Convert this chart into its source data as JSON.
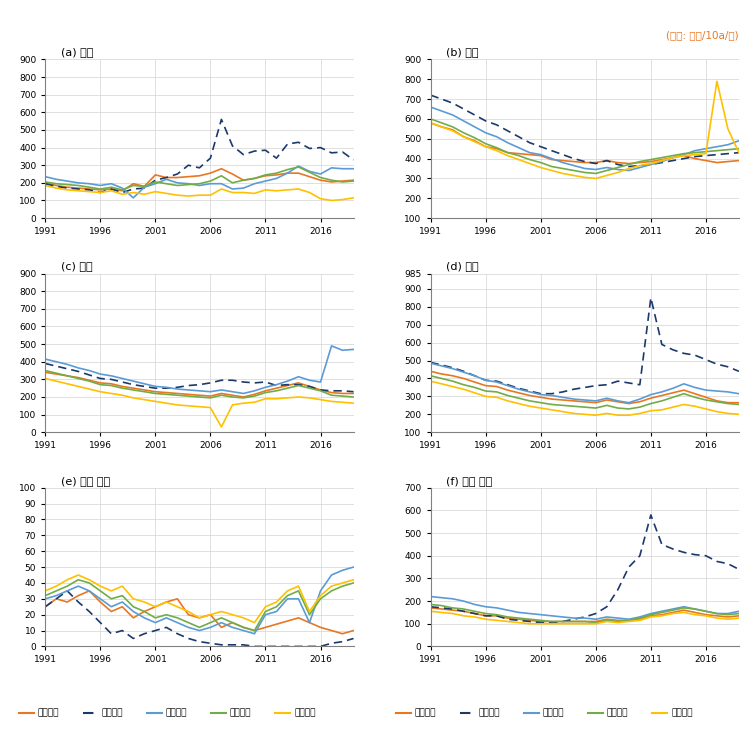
{
  "title_unit": "(단위: 시간/10a/연)",
  "years": [
    1991,
    1992,
    1993,
    1994,
    1995,
    1996,
    1997,
    1998,
    1999,
    2000,
    2001,
    2002,
    2003,
    2004,
    2005,
    2006,
    2007,
    2008,
    2009,
    2010,
    2011,
    2012,
    2013,
    2014,
    2015,
    2016,
    2017,
    2018,
    2019
  ],
  "subplot_titles": [
    "(a) 고용",
    "(b) 자가",
    "(c) 남자",
    "(d) 여자",
    "(e) 남자 고용",
    "(f) 여자 고용"
  ],
  "legend_left": [
    "경상남도",
    "경상북도",
    "전라남도",
    "전라북도",
    "충청남도"
  ],
  "legend_right": [
    "경상남도",
    "경상북도",
    "전라남도",
    "전라북도",
    "충청남도"
  ],
  "colors": [
    "#E87722",
    "#1B3A6B",
    "#5B9BD5",
    "#70AD47",
    "#FFC000"
  ],
  "dashed_index": 1,
  "panels": {
    "a": {
      "ylim": [
        0,
        900
      ],
      "yticks": [
        0,
        100,
        200,
        300,
        400,
        500,
        600,
        700,
        800,
        900
      ],
      "series": [
        [
          200,
          185,
          175,
          170,
          165,
          160,
          165,
          155,
          195,
          180,
          245,
          230,
          230,
          235,
          240,
          255,
          280,
          250,
          215,
          225,
          240,
          245,
          255,
          255,
          235,
          215,
          205,
          210,
          215
        ],
        [
          195,
          180,
          170,
          165,
          160,
          145,
          165,
          145,
          165,
          170,
          215,
          230,
          250,
          300,
          285,
          340,
          560,
          410,
          360,
          380,
          385,
          340,
          420,
          430,
          395,
          400,
          370,
          375,
          330
        ],
        [
          235,
          220,
          210,
          200,
          195,
          185,
          195,
          170,
          115,
          175,
          195,
          220,
          200,
          195,
          185,
          195,
          195,
          165,
          170,
          195,
          210,
          225,
          255,
          295,
          265,
          250,
          285,
          280,
          280
        ],
        [
          205,
          195,
          190,
          185,
          175,
          165,
          175,
          160,
          185,
          180,
          205,
          195,
          185,
          190,
          195,
          210,
          240,
          200,
          215,
          225,
          245,
          255,
          275,
          290,
          260,
          230,
          215,
          205,
          210
        ],
        [
          185,
          170,
          160,
          155,
          150,
          145,
          155,
          135,
          145,
          135,
          150,
          140,
          130,
          125,
          130,
          130,
          165,
          145,
          145,
          140,
          160,
          155,
          160,
          165,
          145,
          110,
          100,
          105,
          115
        ]
      ]
    },
    "b": {
      "ylim": [
        100,
        900
      ],
      "yticks": [
        100,
        200,
        300,
        400,
        500,
        600,
        700,
        800,
        900
      ],
      "series": [
        [
          580,
          560,
          545,
          510,
          490,
          460,
          450,
          430,
          425,
          420,
          415,
          395,
          390,
          385,
          380,
          380,
          390,
          380,
          375,
          380,
          385,
          395,
          405,
          415,
          400,
          390,
          380,
          385,
          390
        ],
        [
          720,
          700,
          680,
          650,
          620,
          590,
          570,
          540,
          510,
          480,
          460,
          440,
          420,
          400,
          385,
          375,
          390,
          370,
          360,
          365,
          370,
          380,
          390,
          400,
          410,
          415,
          420,
          425,
          430
        ],
        [
          660,
          640,
          620,
          590,
          560,
          530,
          510,
          480,
          455,
          430,
          420,
          400,
          380,
          365,
          350,
          345,
          355,
          345,
          340,
          355,
          370,
          385,
          405,
          420,
          440,
          450,
          460,
          470,
          490
        ],
        [
          600,
          580,
          560,
          530,
          505,
          475,
          455,
          430,
          415,
          395,
          380,
          360,
          350,
          340,
          330,
          325,
          340,
          355,
          370,
          385,
          395,
          405,
          415,
          425,
          430,
          435,
          440,
          445,
          450
        ],
        [
          580,
          560,
          540,
          510,
          485,
          460,
          440,
          415,
          395,
          375,
          355,
          340,
          325,
          315,
          305,
          300,
          315,
          330,
          350,
          365,
          375,
          390,
          405,
          415,
          420,
          425,
          790,
          550,
          430
        ]
      ]
    },
    "c": {
      "ylim": [
        0,
        900
      ],
      "yticks": [
        0,
        100,
        200,
        300,
        400,
        500,
        600,
        700,
        800,
        900
      ],
      "series": [
        [
          340,
          330,
          320,
          310,
          295,
          280,
          275,
          260,
          250,
          240,
          230,
          225,
          220,
          215,
          210,
          205,
          220,
          210,
          200,
          215,
          235,
          250,
          265,
          280,
          260,
          240,
          225,
          220,
          220
        ],
        [
          390,
          375,
          360,
          345,
          325,
          305,
          300,
          285,
          270,
          260,
          250,
          250,
          255,
          265,
          270,
          280,
          295,
          295,
          285,
          280,
          285,
          265,
          270,
          270,
          260,
          240,
          235,
          235,
          230
        ],
        [
          415,
          400,
          385,
          365,
          350,
          330,
          320,
          305,
          290,
          275,
          260,
          255,
          245,
          240,
          235,
          230,
          240,
          230,
          220,
          235,
          255,
          270,
          290,
          315,
          295,
          285,
          490,
          465,
          470
        ],
        [
          350,
          335,
          320,
          305,
          290,
          270,
          265,
          250,
          240,
          230,
          220,
          215,
          210,
          205,
          200,
          195,
          210,
          200,
          195,
          205,
          225,
          235,
          250,
          265,
          250,
          235,
          210,
          205,
          200
        ],
        [
          305,
          290,
          275,
          260,
          245,
          230,
          220,
          210,
          195,
          185,
          175,
          165,
          155,
          150,
          145,
          140,
          30,
          155,
          165,
          170,
          190,
          190,
          195,
          200,
          195,
          185,
          175,
          170,
          165
        ]
      ]
    },
    "d": {
      "ylim": [
        100,
        985
      ],
      "yticks": [
        100,
        200,
        300,
        400,
        500,
        600,
        700,
        800,
        900,
        985
      ],
      "series": [
        [
          440,
          425,
          415,
          400,
          380,
          360,
          355,
          335,
          320,
          305,
          295,
          285,
          280,
          275,
          270,
          265,
          280,
          270,
          260,
          270,
          290,
          305,
          320,
          335,
          315,
          295,
          275,
          265,
          265
        ],
        [
          490,
          475,
          460,
          440,
          415,
          390,
          385,
          365,
          345,
          330,
          315,
          315,
          325,
          340,
          350,
          360,
          365,
          385,
          375,
          365,
          850,
          590,
          560,
          540,
          530,
          505,
          480,
          465,
          440
        ],
        [
          485,
          470,
          455,
          435,
          415,
          390,
          380,
          360,
          340,
          325,
          310,
          305,
          295,
          285,
          280,
          275,
          290,
          275,
          265,
          285,
          310,
          325,
          345,
          370,
          350,
          335,
          330,
          325,
          315
        ],
        [
          415,
          400,
          385,
          365,
          350,
          330,
          325,
          305,
          290,
          275,
          265,
          255,
          250,
          245,
          240,
          235,
          250,
          235,
          230,
          240,
          260,
          275,
          295,
          315,
          295,
          280,
          270,
          260,
          255
        ],
        [
          385,
          370,
          355,
          340,
          320,
          300,
          295,
          275,
          260,
          245,
          235,
          225,
          215,
          205,
          200,
          195,
          205,
          195,
          195,
          205,
          220,
          225,
          240,
          255,
          245,
          230,
          215,
          205,
          200
        ]
      ]
    },
    "e": {
      "ylim": [
        0,
        100
      ],
      "yticks": [
        0,
        10,
        20,
        30,
        40,
        50,
        60,
        70,
        80,
        90,
        100
      ],
      "series": [
        [
          25,
          30,
          28,
          32,
          35,
          28,
          22,
          25,
          18,
          22,
          25,
          28,
          30,
          20,
          18,
          20,
          12,
          15,
          12,
          10,
          12,
          14,
          16,
          18,
          15,
          12,
          10,
          8,
          10
        ],
        [
          25,
          30,
          35,
          28,
          22,
          15,
          8,
          10,
          5,
          8,
          10,
          12,
          8,
          5,
          3,
          2,
          1,
          1,
          1,
          0,
          0,
          0,
          0,
          0,
          0,
          0,
          2,
          3,
          5
        ],
        [
          30,
          32,
          35,
          38,
          35,
          30,
          25,
          28,
          22,
          18,
          15,
          18,
          15,
          12,
          10,
          12,
          15,
          12,
          10,
          8,
          20,
          22,
          30,
          30,
          15,
          35,
          45,
          48,
          50
        ],
        [
          32,
          35,
          38,
          42,
          40,
          35,
          30,
          32,
          25,
          22,
          18,
          20,
          18,
          15,
          12,
          15,
          18,
          15,
          12,
          10,
          22,
          25,
          32,
          35,
          20,
          30,
          35,
          38,
          40
        ],
        [
          35,
          38,
          42,
          45,
          42,
          38,
          35,
          38,
          30,
          28,
          25,
          28,
          25,
          22,
          18,
          20,
          22,
          20,
          18,
          15,
          25,
          28,
          35,
          38,
          22,
          32,
          38,
          40,
          42
        ]
      ]
    },
    "f": {
      "ylim": [
        0,
        700
      ],
      "yticks": [
        0,
        100,
        200,
        300,
        400,
        500,
        600,
        700
      ],
      "series": [
        [
          170,
          165,
          160,
          155,
          145,
          135,
          135,
          125,
          120,
          115,
          110,
          110,
          110,
          110,
          110,
          110,
          120,
          115,
          115,
          120,
          135,
          140,
          150,
          160,
          150,
          140,
          135,
          130,
          135
        ],
        [
          175,
          170,
          165,
          155,
          145,
          135,
          135,
          120,
          115,
          110,
          105,
          105,
          110,
          120,
          130,
          145,
          175,
          250,
          350,
          400,
          580,
          450,
          430,
          415,
          405,
          400,
          375,
          365,
          340
        ],
        [
          220,
          215,
          210,
          200,
          185,
          175,
          170,
          160,
          150,
          145,
          140,
          135,
          130,
          125,
          125,
          120,
          130,
          125,
          120,
          130,
          145,
          155,
          165,
          175,
          165,
          155,
          145,
          145,
          155
        ],
        [
          185,
          180,
          170,
          165,
          155,
          145,
          140,
          130,
          125,
          120,
          115,
          110,
          110,
          110,
          110,
          105,
          115,
          110,
          115,
          125,
          140,
          150,
          160,
          170,
          165,
          155,
          145,
          140,
          145
        ],
        [
          155,
          150,
          145,
          135,
          130,
          120,
          115,
          110,
          105,
          100,
          100,
          100,
          100,
          100,
          100,
          100,
          110,
          105,
          110,
          115,
          130,
          135,
          145,
          150,
          140,
          135,
          125,
          120,
          125
        ]
      ]
    }
  }
}
